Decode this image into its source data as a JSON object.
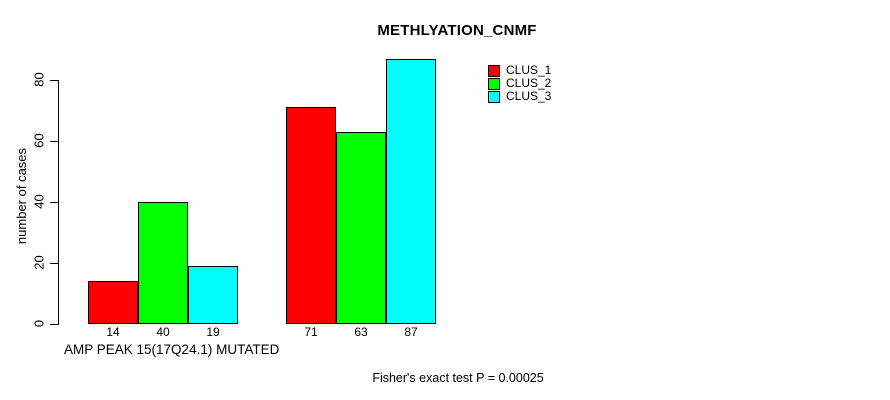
{
  "chart_data": {
    "type": "bar",
    "title": "METHLYATION_CNMF",
    "ylabel": "number of cases",
    "xlabel": "AMP PEAK 15(17Q24.1) MUTATED",
    "ylim": [
      0,
      80
    ],
    "yticks": [
      0,
      20,
      40,
      60,
      80
    ],
    "grid": false,
    "num_groups": 2,
    "series": [
      {
        "name": "CLUS_1",
        "color": "#ff0000",
        "values": [
          14,
          71
        ]
      },
      {
        "name": "CLUS_2",
        "color": "#00ff00",
        "values": [
          40,
          63
        ]
      },
      {
        "name": "CLUS_3",
        "color": "#00ffff",
        "values": [
          19,
          87
        ]
      }
    ],
    "bar_border_color": "#000000",
    "value_labels": [
      [
        14,
        40,
        19
      ],
      [
        71,
        63,
        87
      ]
    ],
    "legend": {
      "position": "top-right",
      "entries": [
        {
          "label": "CLUS_1",
          "color": "#ff0000"
        },
        {
          "label": "CLUS_2",
          "color": "#00ff00"
        },
        {
          "label": "CLUS_3",
          "color": "#00ffff"
        }
      ]
    }
  },
  "annotations": {
    "fisher_note": "Fisher's exact test P = 0.00025"
  }
}
